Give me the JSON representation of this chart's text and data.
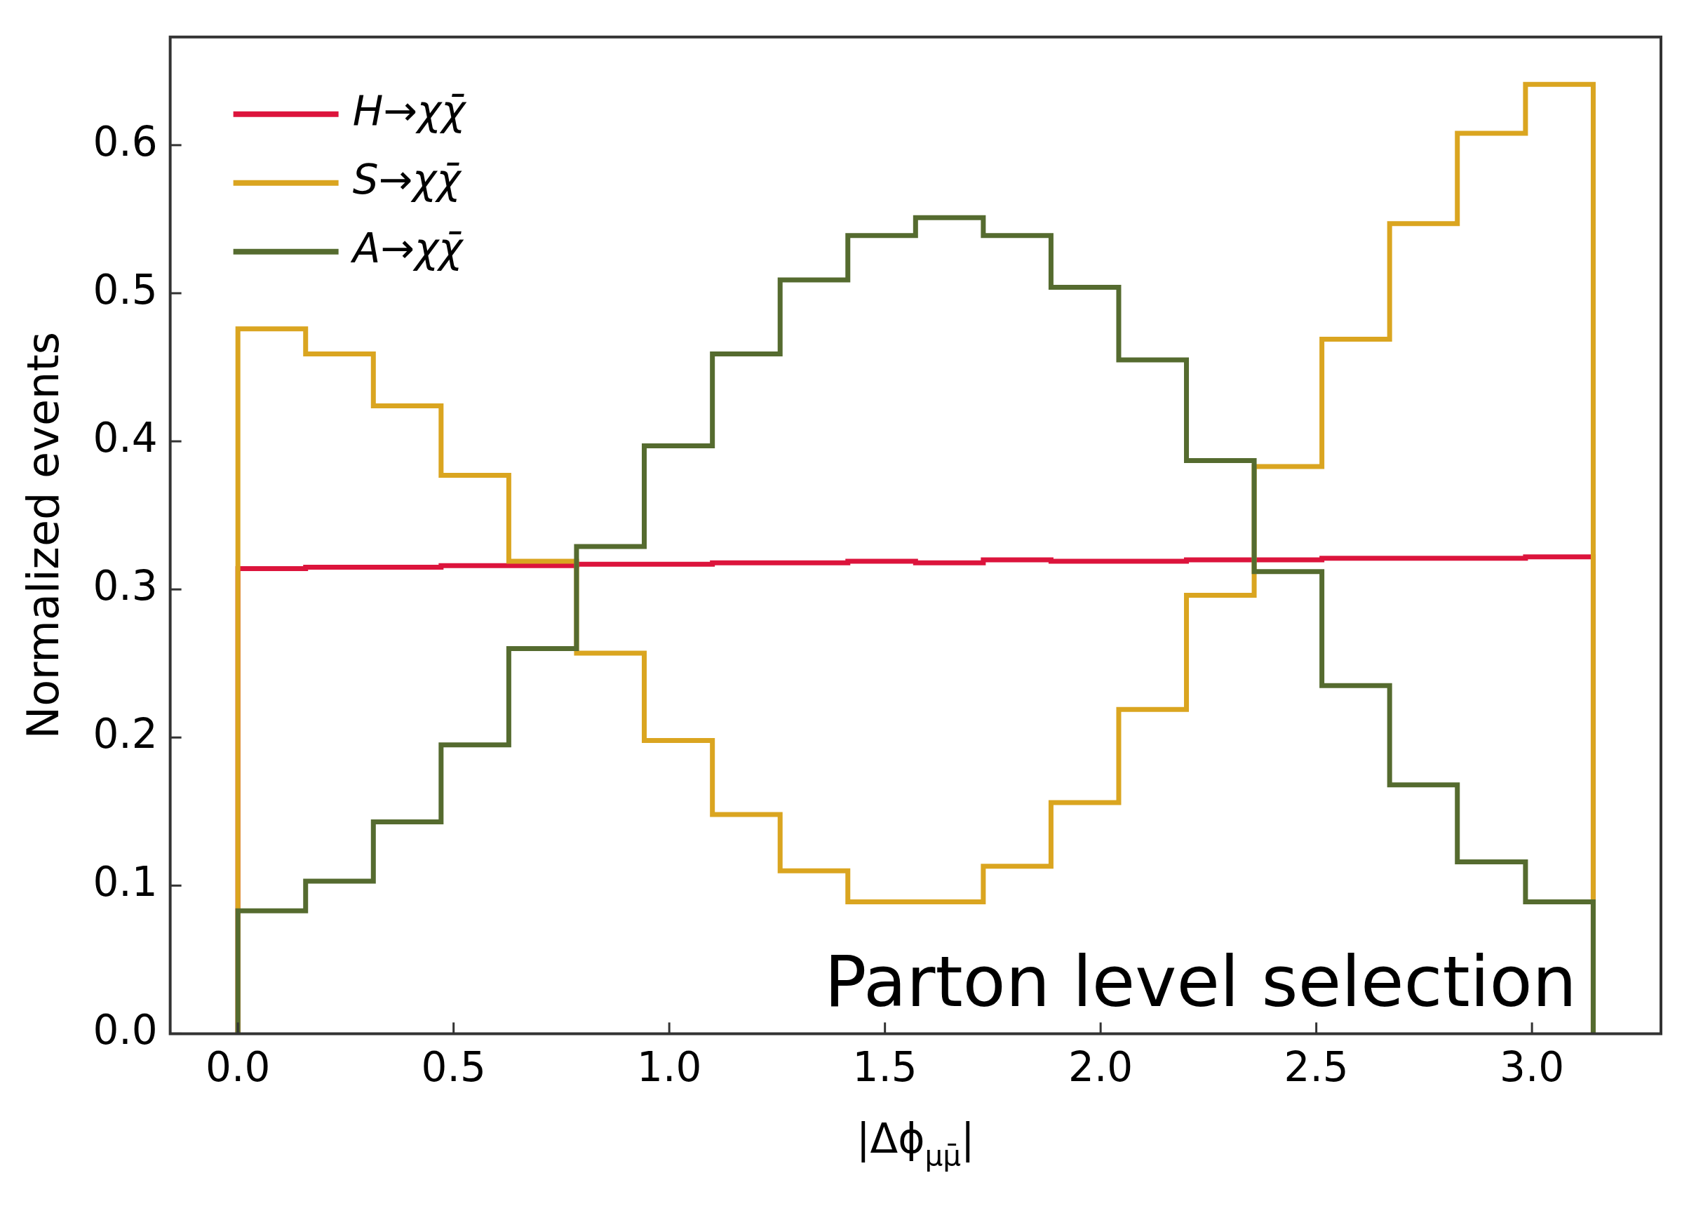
{
  "chart_data": {
    "type": "histogram",
    "xlabel": "|Δϕ$_{μμ̄}$|",
    "ylabel": "Normalized events",
    "annotations": [
      "Parton level selection"
    ],
    "bins": [
      0,
      0.157,
      0.314,
      0.471,
      0.628,
      0.785,
      0.942,
      1.1,
      1.257,
      1.414,
      1.571,
      1.728,
      1.885,
      2.042,
      2.199,
      2.356,
      2.513,
      2.67,
      2.827,
      2.985,
      3.142
    ],
    "series": [
      {
        "name": "H→χχ̄",
        "color": "#dc143c",
        "values": [
          0.314,
          0.315,
          0.315,
          0.316,
          0.316,
          0.317,
          0.317,
          0.318,
          0.318,
          0.319,
          0.318,
          0.32,
          0.319,
          0.319,
          0.32,
          0.32,
          0.321,
          0.321,
          0.321,
          0.322
        ]
      },
      {
        "name": "S→χχ̄",
        "color": "#daa520",
        "values": [
          0.476,
          0.459,
          0.424,
          0.377,
          0.319,
          0.257,
          0.198,
          0.148,
          0.11,
          0.089,
          0.089,
          0.113,
          0.156,
          0.219,
          0.296,
          0.383,
          0.469,
          0.547,
          0.608,
          0.641
        ]
      },
      {
        "name": "A→χχ̄",
        "color": "#556b2f",
        "values": [
          0.083,
          0.103,
          0.143,
          0.195,
          0.26,
          0.329,
          0.397,
          0.459,
          0.509,
          0.539,
          0.551,
          0.539,
          0.504,
          0.455,
          0.387,
          0.312,
          0.235,
          0.168,
          0.116,
          0.089
        ]
      }
    ],
    "xlim": [
      -0.157,
      3.299
    ],
    "ylim": [
      0,
      0.673
    ],
    "xticks": [
      {
        "value": 0,
        "label": "0.0"
      },
      {
        "value": 0.5,
        "label": "0.5"
      },
      {
        "value": 1,
        "label": "1.0"
      },
      {
        "value": 1.5,
        "label": "1.5"
      },
      {
        "value": 2,
        "label": "2.0"
      },
      {
        "value": 2.5,
        "label": "2.5"
      },
      {
        "value": 3,
        "label": "3.0"
      }
    ],
    "yticks": [
      {
        "value": 0,
        "label": "0.0"
      },
      {
        "value": 0.1,
        "label": "0.1"
      },
      {
        "value": 0.2,
        "label": "0.2"
      },
      {
        "value": 0.3,
        "label": "0.3"
      },
      {
        "value": 0.4,
        "label": "0.4"
      },
      {
        "value": 0.5,
        "label": "0.5"
      },
      {
        "value": 0.6,
        "label": "0.6"
      }
    ],
    "legend": "top left"
  }
}
